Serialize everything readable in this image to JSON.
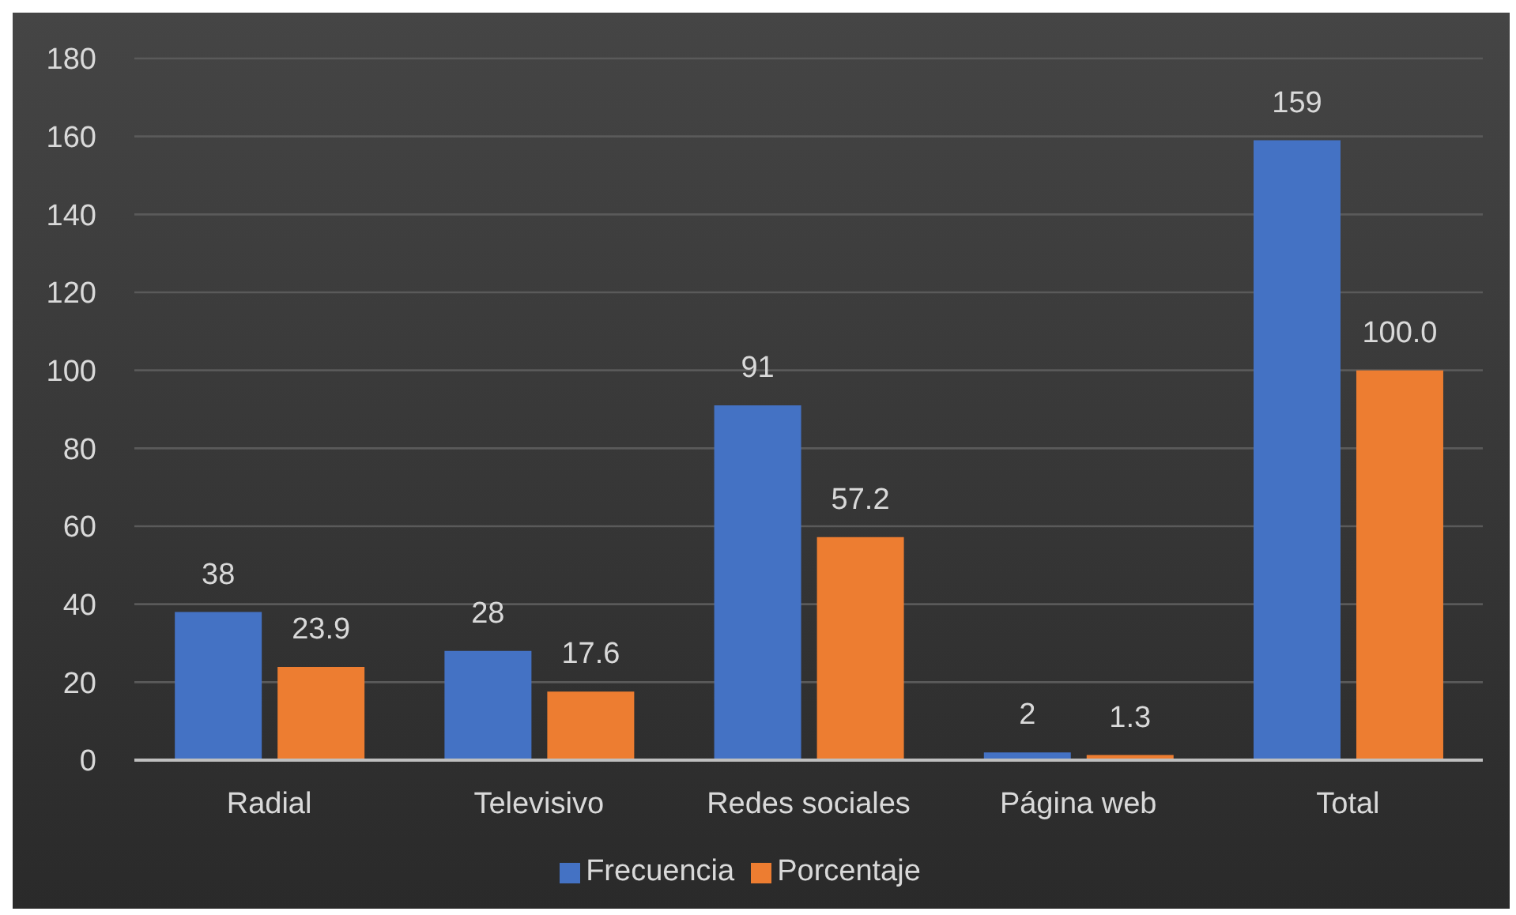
{
  "chart_data": {
    "type": "bar",
    "categories": [
      "Radial",
      "Televisivo",
      "Redes sociales",
      "Página web",
      "Total"
    ],
    "series": [
      {
        "name": "Frecuencia",
        "color": "#4472c4",
        "values": [
          38,
          28,
          91,
          2,
          159
        ],
        "value_labels": [
          "38",
          "28",
          "91",
          "2",
          "159"
        ]
      },
      {
        "name": "Porcentaje",
        "color": "#ed7d31",
        "values": [
          23.9,
          17.6,
          57.2,
          1.3,
          100.0
        ],
        "value_labels": [
          "23.9",
          "17.6",
          "57.2",
          "1.3",
          "100.0"
        ]
      }
    ],
    "ylim": [
      0,
      180
    ],
    "yticks": [
      0,
      20,
      40,
      60,
      80,
      100,
      120,
      140,
      160,
      180
    ],
    "grid": "y",
    "legend": "bottom"
  }
}
